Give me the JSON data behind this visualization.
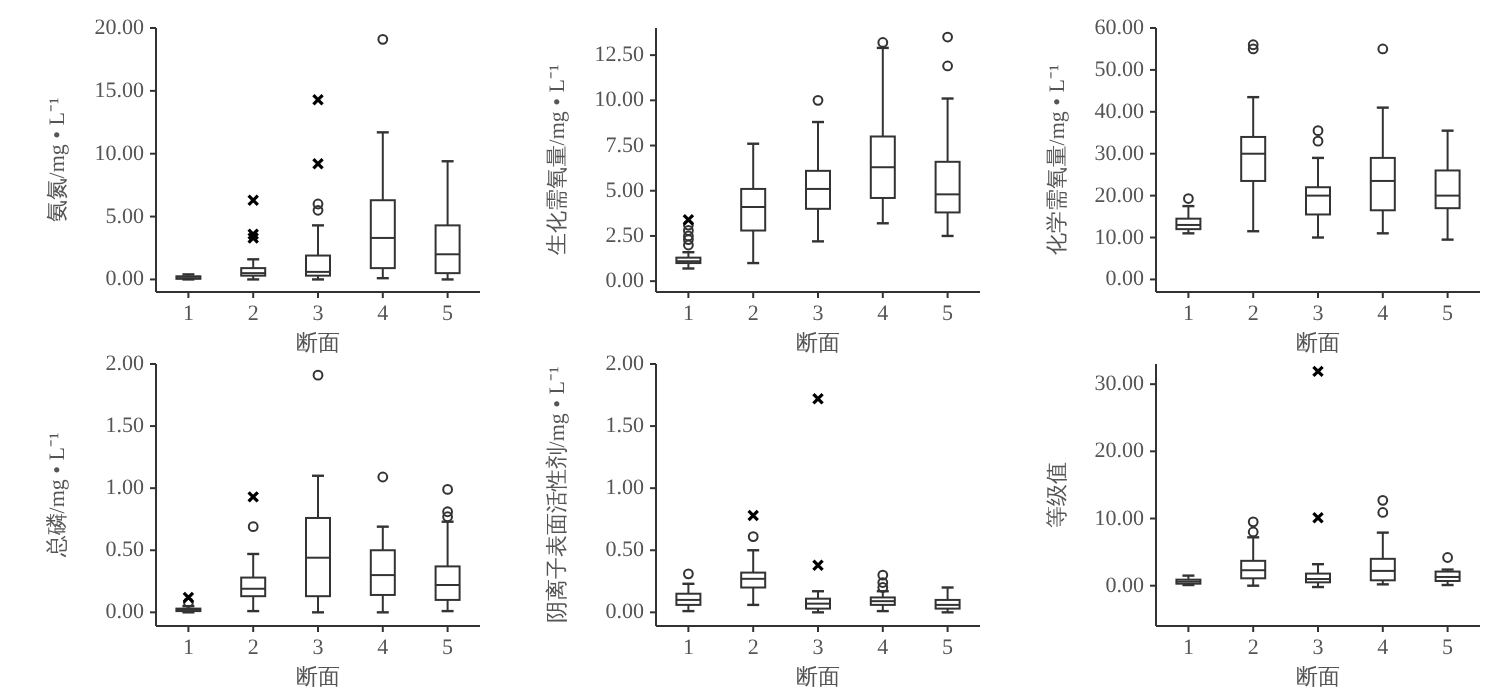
{
  "chart_data": [
    {
      "type": "box",
      "xlabel": "断面",
      "ylabel": "氨氮/mg • L⁻¹",
      "categories": [
        "1",
        "2",
        "3",
        "4",
        "5"
      ],
      "ylim": [
        -1,
        20
      ],
      "yticks": [
        {
          "value": 0,
          "label": "0.00"
        },
        {
          "value": 5,
          "label": "5.00"
        },
        {
          "value": 10,
          "label": "10.00"
        },
        {
          "value": 15,
          "label": "15.00"
        },
        {
          "value": 20,
          "label": "20.00"
        }
      ],
      "boxes": [
        {
          "low": 0,
          "q1": 0.05,
          "median": 0.1,
          "q3": 0.25,
          "high": 0.4
        },
        {
          "low": 0,
          "q1": 0.3,
          "median": 0.5,
          "q3": 0.9,
          "high": 1.6
        },
        {
          "low": 0,
          "q1": 0.3,
          "median": 0.6,
          "q3": 1.9,
          "high": 4.3,
          "outliers": [
            5.5,
            6.0
          ]
        },
        {
          "low": 0.1,
          "q1": 0.9,
          "median": 3.3,
          "q3": 6.3,
          "high": 11.7,
          "outliers": [
            19.1
          ]
        },
        {
          "low": 0,
          "q1": 0.5,
          "median": 2.0,
          "q3": 4.3,
          "high": 9.4
        }
      ],
      "series": [
        {
          "type": "scatter",
          "marker": "cross",
          "color": "#000000",
          "x": [
            "2",
            "2",
            "2",
            "3",
            "3"
          ],
          "values": [
            3.3,
            3.6,
            6.3,
            9.2,
            14.3
          ]
        }
      ]
    },
    {
      "type": "box",
      "xlabel": "断面",
      "ylabel": "生化需氧量/mg • L⁻¹",
      "categories": [
        "1",
        "2",
        "3",
        "4",
        "5"
      ],
      "ylim": [
        -0.6,
        14
      ],
      "yticks": [
        {
          "value": 0,
          "label": "0.00"
        },
        {
          "value": 2.5,
          "label": "2.50"
        },
        {
          "value": 5,
          "label": "5.00"
        },
        {
          "value": 7.5,
          "label": "7.50"
        },
        {
          "value": 10,
          "label": "10.00"
        },
        {
          "value": 12.5,
          "label": "12.50"
        }
      ],
      "boxes": [
        {
          "low": 0.7,
          "q1": 1.0,
          "median": 1.1,
          "q3": 1.3,
          "high": 1.6,
          "outliers": [
            2.0,
            2.3,
            2.5,
            2.8,
            3.1
          ]
        },
        {
          "low": 1.0,
          "q1": 2.8,
          "median": 4.1,
          "q3": 5.1,
          "high": 7.6
        },
        {
          "low": 2.2,
          "q1": 4.0,
          "median": 5.1,
          "q3": 6.1,
          "high": 8.8,
          "outliers": [
            10.0
          ]
        },
        {
          "low": 3.2,
          "q1": 4.6,
          "median": 6.3,
          "q3": 8.0,
          "high": 12.9,
          "outliers": [
            13.2
          ]
        },
        {
          "low": 2.5,
          "q1": 3.8,
          "median": 4.8,
          "q3": 6.6,
          "high": 10.1,
          "outliers": [
            11.9,
            13.5
          ]
        }
      ],
      "series": [
        {
          "type": "scatter",
          "marker": "cross",
          "color": "#000000",
          "x": [
            "1"
          ],
          "values": [
            3.4
          ]
        }
      ]
    },
    {
      "type": "box",
      "xlabel": "断面",
      "ylabel": "化学需氧量/mg • L⁻¹",
      "categories": [
        "1",
        "2",
        "3",
        "4",
        "5"
      ],
      "ylim": [
        -3,
        60
      ],
      "yticks": [
        {
          "value": 0,
          "label": "0.00"
        },
        {
          "value": 10,
          "label": "10.00"
        },
        {
          "value": 20,
          "label": "20.00"
        },
        {
          "value": 30,
          "label": "30.00"
        },
        {
          "value": 40,
          "label": "40.00"
        },
        {
          "value": 50,
          "label": "50.00"
        },
        {
          "value": 60,
          "label": "60.00"
        }
      ],
      "boxes": [
        {
          "low": 11,
          "q1": 12,
          "median": 13,
          "q3": 14.5,
          "high": 17.5,
          "outliers": [
            19.3
          ]
        },
        {
          "low": 11.5,
          "q1": 23.5,
          "median": 30,
          "q3": 34,
          "high": 43.5,
          "outliers": [
            55,
            56
          ]
        },
        {
          "low": 10,
          "q1": 15.5,
          "median": 20,
          "q3": 22,
          "high": 29,
          "outliers": [
            33,
            35.5
          ]
        },
        {
          "low": 11,
          "q1": 16.5,
          "median": 23.5,
          "q3": 29,
          "high": 41,
          "outliers": [
            55
          ]
        },
        {
          "low": 9.5,
          "q1": 17,
          "median": 20,
          "q3": 26,
          "high": 35.5
        }
      ]
    },
    {
      "type": "box",
      "xlabel": "断面",
      "ylabel": "总磷/mg • L⁻¹",
      "categories": [
        "1",
        "2",
        "3",
        "4",
        "5"
      ],
      "ylim": [
        -0.11,
        2
      ],
      "yticks": [
        {
          "value": 0,
          "label": "0.00"
        },
        {
          "value": 0.5,
          "label": "0.50"
        },
        {
          "value": 1,
          "label": "1.00"
        },
        {
          "value": 1.5,
          "label": "1.50"
        },
        {
          "value": 2,
          "label": "2.00"
        }
      ],
      "boxes": [
        {
          "low": 0,
          "q1": 0.01,
          "median": 0.02,
          "q3": 0.03,
          "high": 0.05,
          "outliers": [
            0.08
          ]
        },
        {
          "low": 0.01,
          "q1": 0.13,
          "median": 0.19,
          "q3": 0.28,
          "high": 0.47,
          "outliers": [
            0.69
          ]
        },
        {
          "low": 0,
          "q1": 0.13,
          "median": 0.44,
          "q3": 0.76,
          "high": 1.1,
          "outliers": [
            1.91
          ]
        },
        {
          "low": 0,
          "q1": 0.14,
          "median": 0.3,
          "q3": 0.5,
          "high": 0.69,
          "outliers": [
            1.09
          ]
        },
        {
          "low": 0.01,
          "q1": 0.1,
          "median": 0.22,
          "q3": 0.37,
          "high": 0.73,
          "outliers": [
            0.77,
            0.81,
            0.99
          ]
        }
      ],
      "series": [
        {
          "type": "scatter",
          "marker": "cross",
          "color": "#000000",
          "x": [
            "1",
            "2"
          ],
          "values": [
            0.12,
            0.93
          ]
        }
      ]
    },
    {
      "type": "box",
      "xlabel": "断面",
      "ylabel": "阴离子表面活性剂/mg • L⁻¹",
      "categories": [
        "1",
        "2",
        "3",
        "4",
        "5"
      ],
      "ylim": [
        -0.11,
        2
      ],
      "yticks": [
        {
          "value": 0,
          "label": "0.00"
        },
        {
          "value": 0.5,
          "label": "0.50"
        },
        {
          "value": 1,
          "label": "1.00"
        },
        {
          "value": 1.5,
          "label": "1.50"
        },
        {
          "value": 2,
          "label": "2.00"
        }
      ],
      "boxes": [
        {
          "low": 0.01,
          "q1": 0.06,
          "median": 0.1,
          "q3": 0.15,
          "high": 0.23,
          "outliers": [
            0.31
          ]
        },
        {
          "low": 0.06,
          "q1": 0.2,
          "median": 0.27,
          "q3": 0.32,
          "high": 0.5,
          "outliers": [
            0.61
          ]
        },
        {
          "low": 0,
          "q1": 0.03,
          "median": 0.07,
          "q3": 0.11,
          "high": 0.17
        },
        {
          "low": 0.01,
          "q1": 0.06,
          "median": 0.09,
          "q3": 0.12,
          "high": 0.17,
          "outliers": [
            0.2,
            0.24,
            0.3
          ]
        },
        {
          "low": 0,
          "q1": 0.03,
          "median": 0.06,
          "q3": 0.1,
          "high": 0.2
        }
      ],
      "series": [
        {
          "type": "scatter",
          "marker": "cross",
          "color": "#000000",
          "x": [
            "2",
            "3",
            "3"
          ],
          "values": [
            0.78,
            0.38,
            1.72
          ]
        }
      ]
    },
    {
      "type": "box",
      "xlabel": "断面",
      "ylabel": "等级值",
      "categories": [
        "1",
        "2",
        "3",
        "4",
        "5"
      ],
      "ylim": [
        -6,
        33
      ],
      "yticks": [
        {
          "value": 0,
          "label": "0.00"
        },
        {
          "value": 10,
          "label": "10.00"
        },
        {
          "value": 20,
          "label": "20.00"
        },
        {
          "value": 30,
          "label": "30.00"
        }
      ],
      "boxes": [
        {
          "low": 0.1,
          "q1": 0.3,
          "median": 0.6,
          "q3": 0.9,
          "high": 1.5
        },
        {
          "low": 0,
          "q1": 1.1,
          "median": 2.3,
          "q3": 3.7,
          "high": 7.2,
          "outliers": [
            8.0,
            9.5
          ]
        },
        {
          "low": -0.2,
          "q1": 0.5,
          "median": 1.0,
          "q3": 1.8,
          "high": 3.2
        },
        {
          "low": 0.2,
          "q1": 0.8,
          "median": 2.2,
          "q3": 4.0,
          "high": 7.9,
          "outliers": [
            10.9,
            12.7
          ]
        },
        {
          "low": 0.1,
          "q1": 0.7,
          "median": 1.3,
          "q3": 2.1,
          "high": 2.4,
          "outliers": [
            4.2
          ]
        }
      ],
      "series": [
        {
          "type": "scatter",
          "marker": "cross",
          "color": "#000000",
          "x": [
            "3",
            "3"
          ],
          "values": [
            10.1,
            31.9
          ]
        }
      ]
    }
  ]
}
